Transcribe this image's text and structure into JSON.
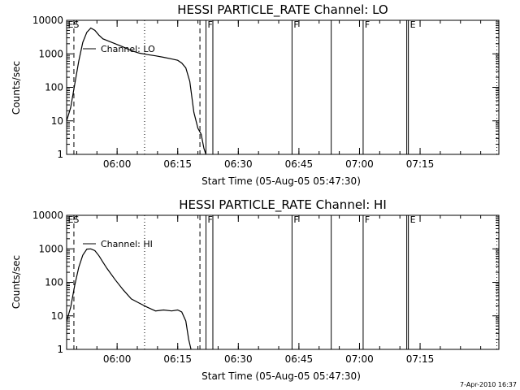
{
  "footer_stamp": "7-Apr-2010 16:37",
  "chart_data": [
    {
      "type": "line",
      "title": "HESSI PARTICLE_RATE Channel: LO",
      "xlabel": "Start Time (05-Aug-05 05:47:30)",
      "ylabel": "Counts/sec",
      "x_unit": "minutes after 05:47:30",
      "xlim": [
        0,
        107
      ],
      "ylim": [
        1,
        10000
      ],
      "y_scale": "log",
      "grid": false,
      "legend_position": "top-left",
      "x_ticks": [
        {
          "x": 12.5,
          "label": "06:00"
        },
        {
          "x": 27.5,
          "label": "06:15"
        },
        {
          "x": 42.5,
          "label": "06:30"
        },
        {
          "x": 57.5,
          "label": "06:45"
        },
        {
          "x": 72.5,
          "label": "07:00"
        },
        {
          "x": 87.5,
          "label": "07:15"
        }
      ],
      "y_ticks": [
        {
          "y": 1,
          "label": "1"
        },
        {
          "y": 10,
          "label": "10"
        },
        {
          "y": 100,
          "label": "100"
        },
        {
          "y": 1000,
          "label": "1000"
        },
        {
          "y": 10000,
          "label": "10000"
        }
      ],
      "series": [
        {
          "name": "Channel: LO",
          "x": [
            0,
            1,
            2,
            3,
            4,
            5,
            6,
            7,
            8,
            9,
            10,
            12,
            14,
            16,
            18,
            20,
            22,
            24,
            26,
            27.5,
            28.5,
            29.5,
            30.5,
            31.5,
            32.5,
            33.3,
            34,
            34.5
          ],
          "y": [
            10,
            25,
            120,
            600,
            2200,
            4400,
            5900,
            5000,
            3600,
            2800,
            2500,
            2000,
            1600,
            1250,
            1050,
            950,
            870,
            790,
            700,
            640,
            530,
            380,
            150,
            18,
            6,
            4,
            1.5,
            1
          ]
        }
      ],
      "dashed_markers": [
        1.8,
        33
      ],
      "dotted_markers": [
        19.3,
        106.5
      ],
      "solid_markers": [
        34.5,
        36.2,
        55.8,
        65.5,
        73.4,
        84.2,
        84.6
      ],
      "marker_labels": [
        {
          "x": 0.3,
          "text": "ES"
        },
        {
          "x": 34.9,
          "text": "F"
        },
        {
          "x": 56.2,
          "text": "F"
        },
        {
          "x": 73.8,
          "text": "F"
        },
        {
          "x": 85,
          "text": "E"
        }
      ]
    },
    {
      "type": "line",
      "title": "HESSI PARTICLE_RATE Channel: HI",
      "xlabel": "Start Time (05-Aug-05 05:47:30)",
      "ylabel": "Counts/sec",
      "x_unit": "minutes after 05:47:30",
      "xlim": [
        0,
        107
      ],
      "ylim": [
        1,
        10000
      ],
      "y_scale": "log",
      "grid": false,
      "legend_position": "top-left",
      "x_ticks": [
        {
          "x": 12.5,
          "label": "06:00"
        },
        {
          "x": 27.5,
          "label": "06:15"
        },
        {
          "x": 42.5,
          "label": "06:30"
        },
        {
          "x": 57.5,
          "label": "06:45"
        },
        {
          "x": 72.5,
          "label": "07:00"
        },
        {
          "x": 87.5,
          "label": "07:15"
        }
      ],
      "y_ticks": [
        {
          "y": 1,
          "label": "1"
        },
        {
          "y": 10,
          "label": "10"
        },
        {
          "y": 100,
          "label": "100"
        },
        {
          "y": 1000,
          "label": "1000"
        },
        {
          "y": 10000,
          "label": "10000"
        }
      ],
      "series": [
        {
          "name": "Channel: HI",
          "x": [
            0,
            1,
            2,
            3,
            4,
            5,
            6,
            7,
            8,
            9,
            10,
            12,
            14,
            16,
            18,
            20,
            22,
            24,
            26,
            27.5,
            28.5,
            29.5,
            30.2,
            30.8
          ],
          "y": [
            7,
            18,
            80,
            280,
            650,
            980,
            1000,
            880,
            620,
            400,
            260,
            120,
            60,
            32,
            24,
            18,
            14,
            15,
            14,
            15,
            13,
            7,
            2,
            1
          ]
        }
      ],
      "dashed_markers": [
        1.8,
        33
      ],
      "dotted_markers": [
        19.3,
        106.5
      ],
      "solid_markers": [
        34.5,
        36.2,
        55.8,
        65.5,
        73.4,
        84.2,
        84.6
      ],
      "marker_labels": [
        {
          "x": 0.3,
          "text": "ES"
        },
        {
          "x": 34.9,
          "text": "F"
        },
        {
          "x": 56.2,
          "text": "F"
        },
        {
          "x": 73.8,
          "text": "F"
        },
        {
          "x": 85,
          "text": "E"
        }
      ]
    }
  ]
}
